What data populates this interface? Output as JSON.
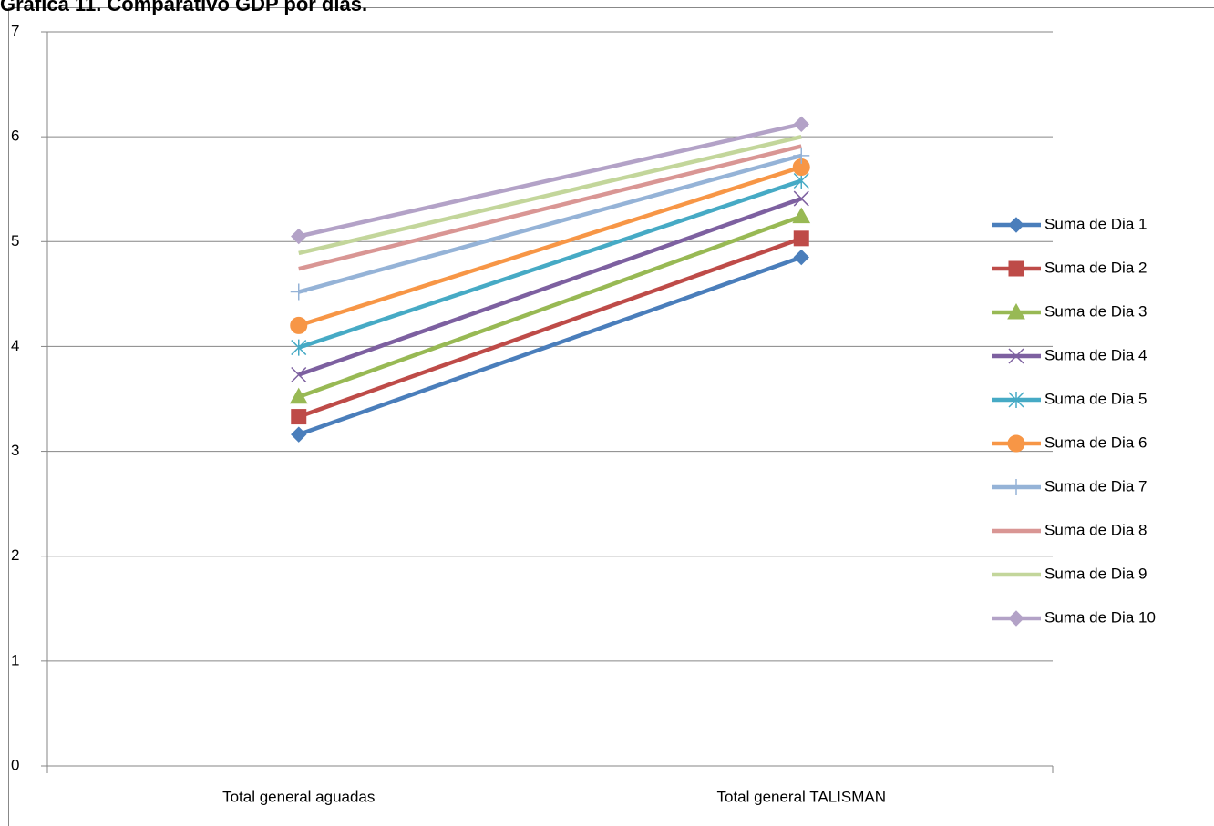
{
  "chart_data": {
    "type": "line",
    "title": "Gráfica 11. Comparativo GDP por días.",
    "categories": [
      "Total general aguadas",
      "Total general TALISMAN"
    ],
    "ylim": [
      0,
      7
    ],
    "yticks": [
      0,
      1,
      2,
      3,
      4,
      5,
      6,
      7
    ],
    "grid": true,
    "legend": "right",
    "series": [
      {
        "name": "Suma de Dia 1",
        "color": "#4a7ebb",
        "marker": "diamond",
        "values": [
          3.16,
          4.85
        ]
      },
      {
        "name": "Suma de Dia 2",
        "color": "#be4b48",
        "marker": "square",
        "values": [
          3.33,
          5.03
        ]
      },
      {
        "name": "Suma de Dia 3",
        "color": "#98b954",
        "marker": "triangle",
        "values": [
          3.52,
          5.24
        ]
      },
      {
        "name": "Suma de Dia 4",
        "color": "#7d60a0",
        "marker": "x",
        "values": [
          3.73,
          5.41
        ]
      },
      {
        "name": "Suma de Dia 5",
        "color": "#46aac5",
        "marker": "star",
        "values": [
          3.99,
          5.58
        ]
      },
      {
        "name": "Suma de Dia 6",
        "color": "#f79646",
        "marker": "circle",
        "values": [
          4.2,
          5.71
        ]
      },
      {
        "name": "Suma de Dia 7",
        "color": "#95b3d7",
        "marker": "plus",
        "values": [
          4.52,
          5.82
        ]
      },
      {
        "name": "Suma de Dia 8",
        "color": "#d99694",
        "marker": "none",
        "values": [
          4.74,
          5.91
        ]
      },
      {
        "name": "Suma de Dia 9",
        "color": "#c3d69b",
        "marker": "none",
        "values": [
          4.89,
          6.0
        ]
      },
      {
        "name": "Suma de Dia 10",
        "color": "#b3a2c7",
        "marker": "diamond",
        "values": [
          5.05,
          6.12
        ]
      }
    ]
  }
}
